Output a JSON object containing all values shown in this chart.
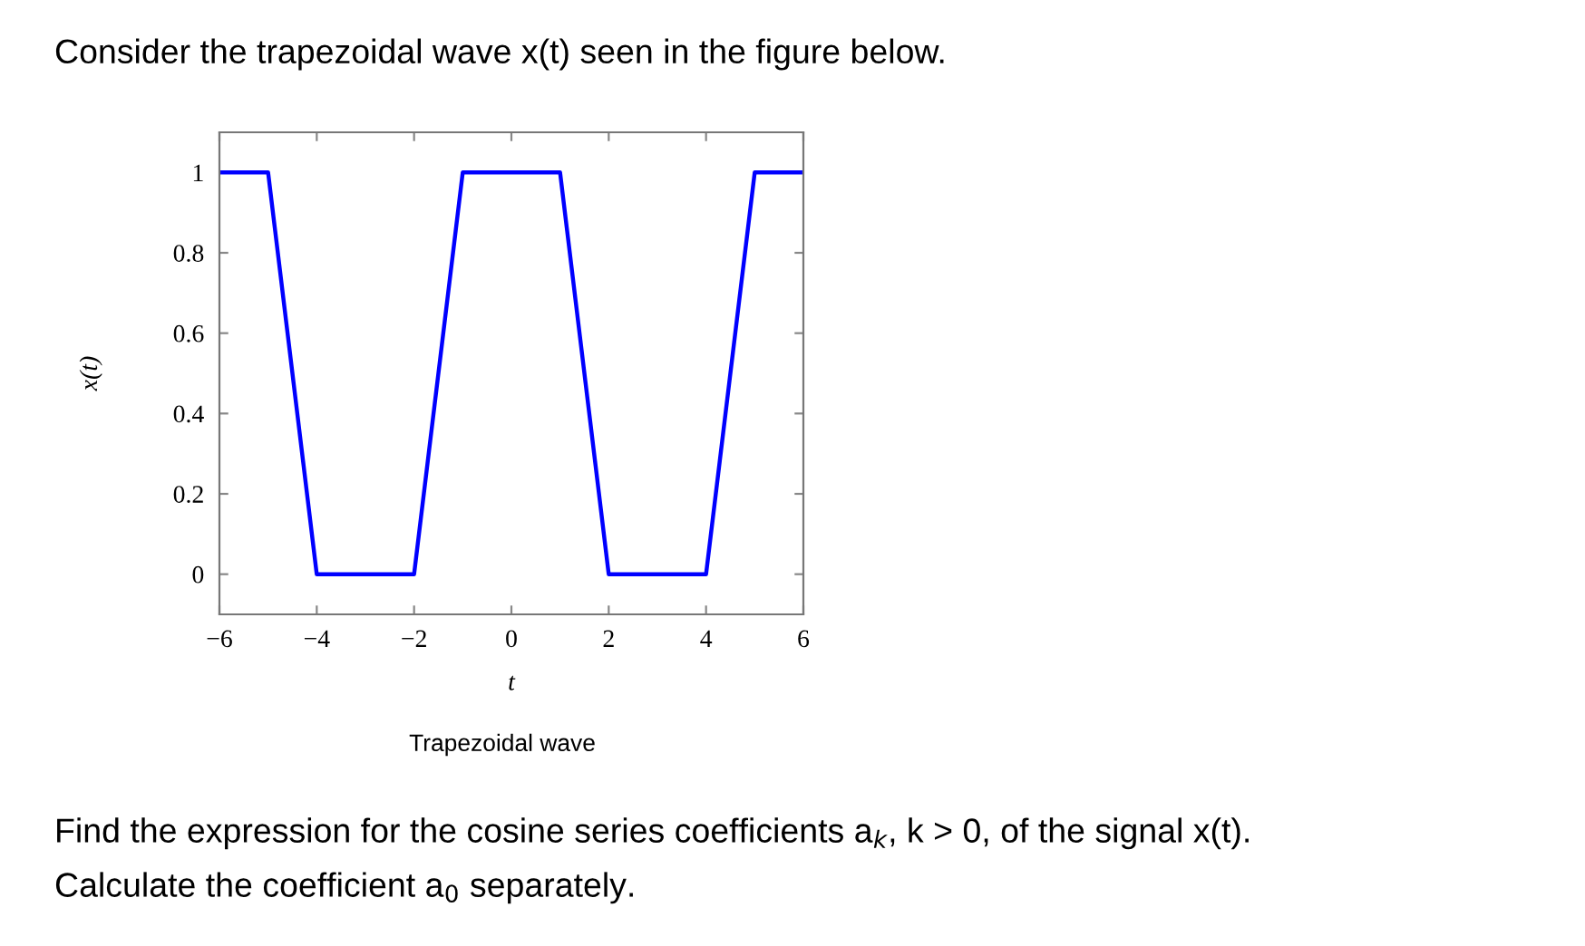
{
  "chart_data": {
    "type": "line",
    "title": "Consider the trapezoidal wave x(t) seen in the figure below.",
    "xlabel": "t",
    "ylabel": "x(t)",
    "annotations": [
      "Trapezoidal wave",
      "Find the expression for the cosine series coefficients a$_{k}$, k > 0, of the signal x(t).",
      "Calculate the coefficient a$_{0}$ separately."
    ],
    "x": [
      -6,
      -5,
      -4,
      -2,
      -1,
      1,
      2,
      4,
      5,
      6
    ],
    "series": [
      {
        "color": "#0000ff",
        "values": [
          1,
          1,
          0,
          0,
          1,
          1,
          0,
          0,
          1,
          1
        ]
      }
    ],
    "xlim": [
      -6,
      6
    ],
    "xticks": [
      -6,
      -4,
      -2,
      0,
      2,
      4,
      6
    ],
    "ylim": [
      -0.1,
      1.1
    ],
    "yticks": [
      0,
      0.2,
      0.4,
      0.6,
      0.8,
      1
    ],
    "grid": false,
    "legend": false,
    "marker": "none",
    "line_style": "solid"
  }
}
